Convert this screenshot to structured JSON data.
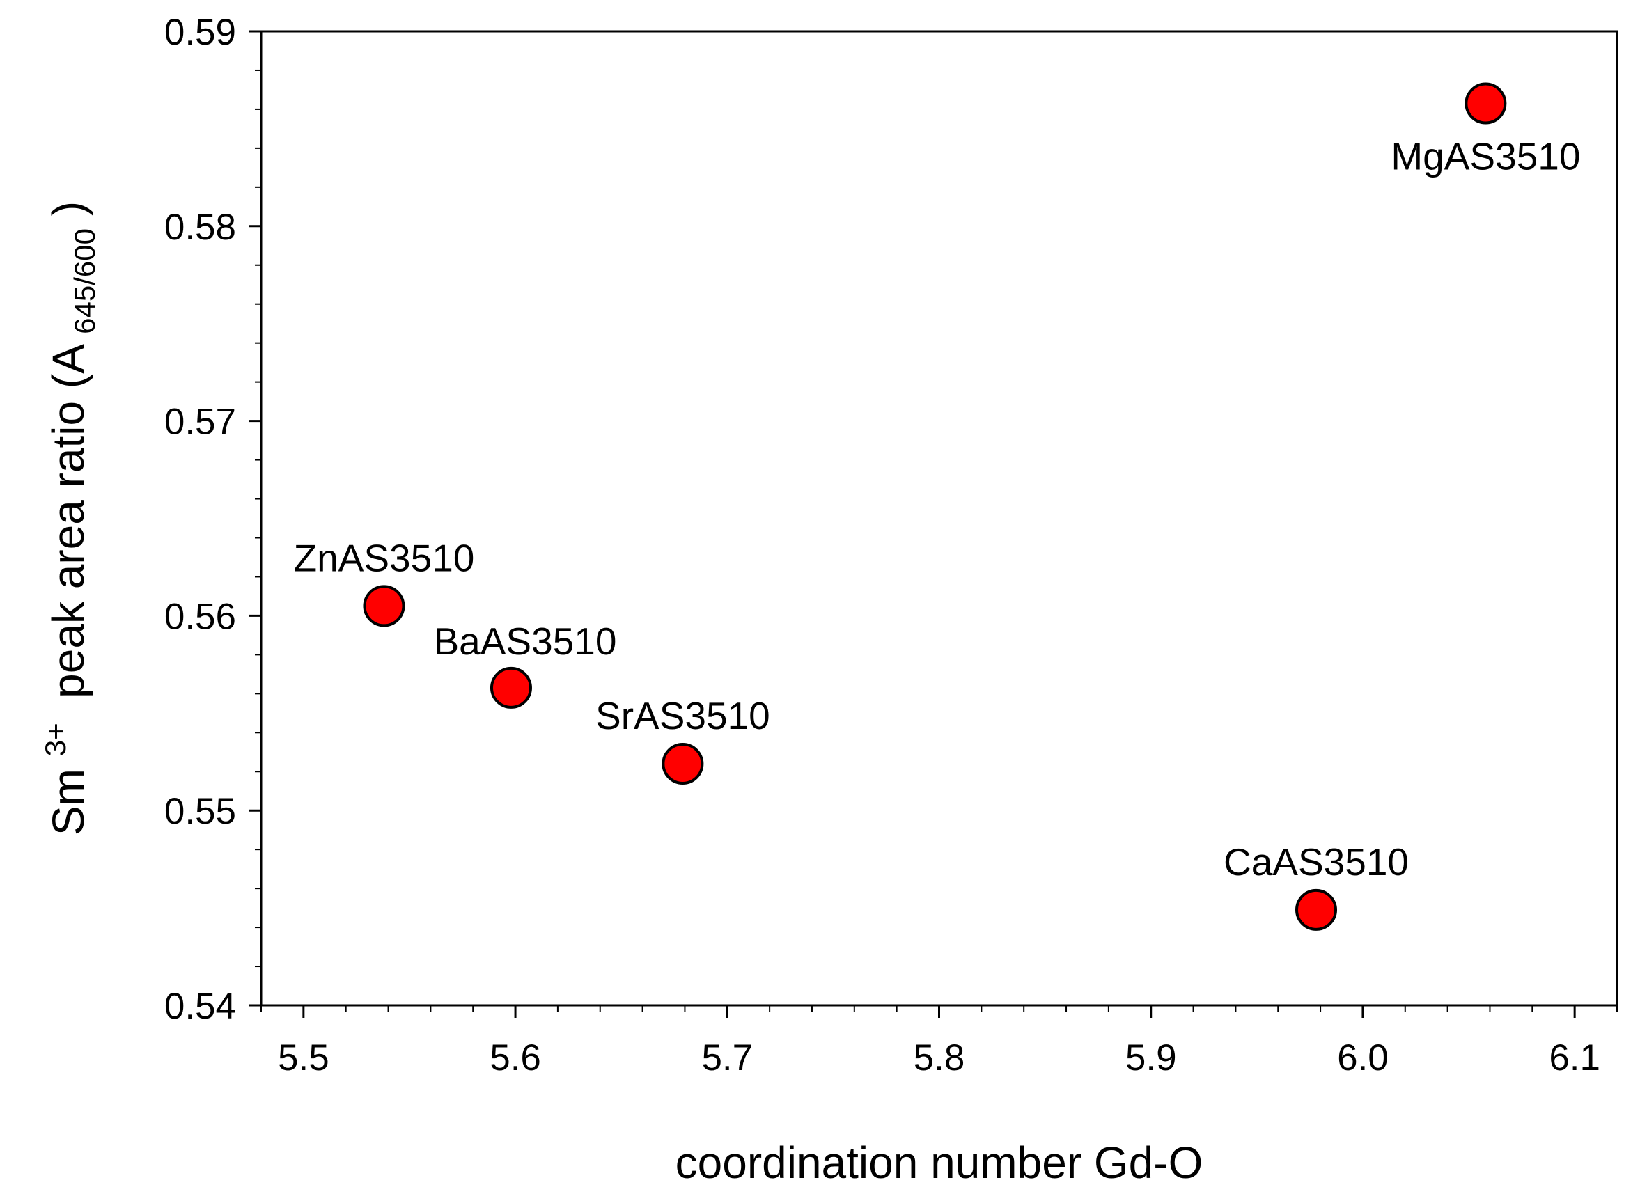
{
  "chart_data": {
    "type": "scatter",
    "title": "",
    "xlabel": "coordination number Gd-O",
    "ylabel": {
      "prefix": "Sm",
      "superscript": "3+",
      "middle": " peak area ratio (A",
      "subscript": "645/600",
      "suffix": ")"
    },
    "xlim": [
      5.48,
      6.12
    ],
    "ylim": [
      0.54,
      0.59
    ],
    "xticks": [
      5.5,
      5.6,
      5.7,
      5.8,
      5.9,
      6.0,
      6.1
    ],
    "xtick_labels": [
      "5.5",
      "5.6",
      "5.7",
      "5.8",
      "5.9",
      "6.0",
      "6.1"
    ],
    "yticks": [
      0.54,
      0.55,
      0.56,
      0.57,
      0.58,
      0.59
    ],
    "ytick_labels": [
      "0.54",
      "0.55",
      "0.56",
      "0.57",
      "0.58",
      "0.59"
    ],
    "x_minor_step": 0.02,
    "y_minor_step": 0.002,
    "grid": false,
    "legend": "none",
    "marker": {
      "shape": "circle",
      "fill": "#ff0000",
      "stroke": "#000000"
    },
    "points": [
      {
        "label": "ZnAS3510",
        "x": 5.538,
        "y": 0.5605,
        "label_position": "above"
      },
      {
        "label": "BaAS3510",
        "x": 5.598,
        "y": 0.5563,
        "label_position": "above-right"
      },
      {
        "label": "SrAS3510",
        "x": 5.679,
        "y": 0.5524,
        "label_position": "above"
      },
      {
        "label": "CaAS3510",
        "x": 5.978,
        "y": 0.5449,
        "label_position": "above"
      },
      {
        "label": "MgAS3510",
        "x": 6.058,
        "y": 0.5863,
        "label_position": "below"
      }
    ]
  }
}
